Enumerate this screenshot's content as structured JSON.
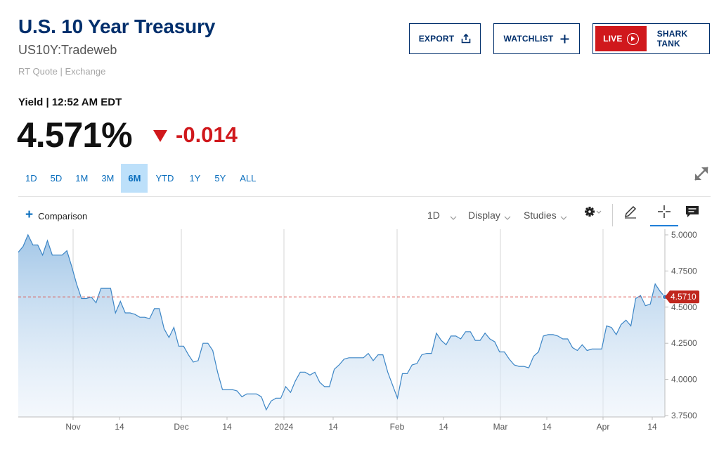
{
  "header": {
    "title": "U.S. 10 Year Treasury",
    "symbol": "US10Y:Tradeweb",
    "rt_quote": "RT Quote | Exchange",
    "export_label": "EXPORT",
    "watchlist_label": "WATCHLIST",
    "live_label": "LIVE",
    "shark_label": "SHARK TANK"
  },
  "quote": {
    "yield_label": "Yield | 12:52 AM EDT",
    "price": "4.571%",
    "change": "-0.014",
    "change_direction": "down",
    "down_color": "#d0181c"
  },
  "ranges": [
    "1D",
    "5D",
    "1M",
    "3M",
    "6M",
    "YTD",
    "1Y",
    "5Y",
    "ALL"
  ],
  "active_range": "6M",
  "toolbar": {
    "comparison_label": "Comparison",
    "interval_label": "1D",
    "display_label": "Display",
    "studies_label": "Studies",
    "icons": [
      "gear-icon",
      "pencil-icon",
      "crosshair-icon",
      "comment-icon"
    ]
  },
  "colors": {
    "brand": "#002f6c",
    "accent": "#0a6ebd",
    "line": "#3d86c6",
    "current_tag": "#c0271e"
  },
  "chart_data": {
    "type": "area",
    "title": "",
    "xlabel": "",
    "ylabel": "",
    "ylim": [
      3.75,
      5.0
    ],
    "x_ticks": [
      "Nov",
      "14",
      "Dec",
      "14",
      "2024",
      "14",
      "Feb",
      "14",
      "Mar",
      "14",
      "Apr",
      "14"
    ],
    "y_ticks": [
      "5.0000",
      "4.7500",
      "4.5000",
      "4.2500",
      "4.0000",
      "3.7500"
    ],
    "current_value": 4.571,
    "current_value_label": "4.5710",
    "grid": "vertical",
    "series": [
      {
        "values": [
          4.88,
          4.92,
          5.0,
          4.93,
          4.93,
          4.86,
          4.96,
          4.86,
          4.86,
          4.86,
          4.89,
          4.78,
          4.66,
          4.56,
          4.56,
          4.57,
          4.53,
          4.63,
          4.63,
          4.63,
          4.46,
          4.54,
          4.46,
          4.46,
          4.45,
          4.43,
          4.43,
          4.42,
          4.49,
          4.49,
          4.35,
          4.29,
          4.36,
          4.23,
          4.23,
          4.17,
          4.12,
          4.13,
          4.25,
          4.25,
          4.2,
          4.05,
          3.93,
          3.93,
          3.93,
          3.92,
          3.88,
          3.9,
          3.9,
          3.9,
          3.88,
          3.79,
          3.85,
          3.87,
          3.87,
          3.95,
          3.91,
          3.99,
          4.05,
          4.05,
          4.03,
          4.05,
          3.98,
          3.95,
          3.95,
          4.07,
          4.1,
          4.14,
          4.15,
          4.15,
          4.15,
          4.15,
          4.18,
          4.13,
          4.17,
          4.17,
          4.05,
          3.96,
          3.87,
          4.04,
          4.04,
          4.1,
          4.11,
          4.17,
          4.18,
          4.18,
          4.32,
          4.27,
          4.24,
          4.3,
          4.3,
          4.28,
          4.33,
          4.33,
          4.27,
          4.27,
          4.32,
          4.28,
          4.26,
          4.19,
          4.19,
          4.14,
          4.1,
          4.09,
          4.09,
          4.08,
          4.16,
          4.19,
          4.3,
          4.31,
          4.31,
          4.3,
          4.28,
          4.28,
          4.22,
          4.2,
          4.24,
          4.2,
          4.21,
          4.21,
          4.21,
          4.37,
          4.36,
          4.31,
          4.38,
          4.41,
          4.37,
          4.56,
          4.58,
          4.51,
          4.52,
          4.66,
          4.61,
          4.571
        ]
      }
    ]
  }
}
